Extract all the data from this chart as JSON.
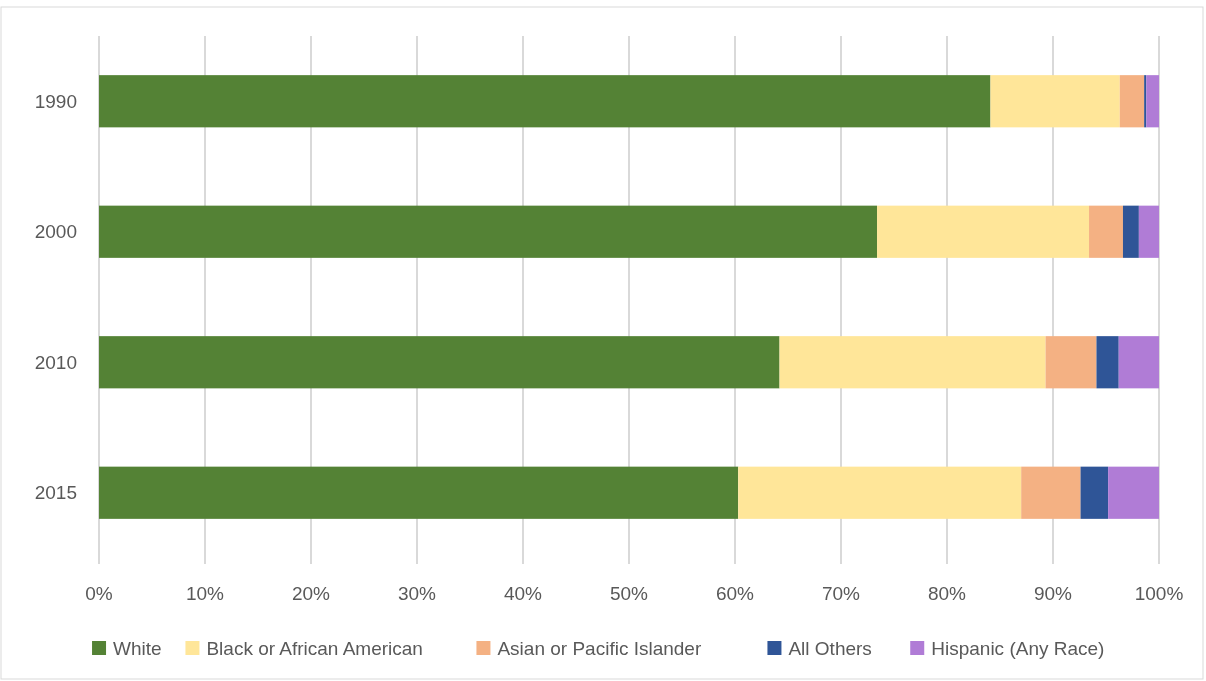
{
  "chart_data": {
    "type": "bar",
    "orientation": "horizontal",
    "stacked": true,
    "categories": [
      "1990",
      "2000",
      "2010",
      "2015"
    ],
    "series": [
      {
        "name": "White",
        "color": "#548235",
        "values": [
          84.1,
          73.4,
          64.2,
          60.3
        ]
      },
      {
        "name": "Black or African American",
        "color": "#ffe699",
        "values": [
          12.2,
          20.0,
          25.1,
          26.7
        ]
      },
      {
        "name": "Asian or Pacific Islander",
        "color": "#f4b183",
        "values": [
          2.3,
          3.2,
          4.8,
          5.6
        ]
      },
      {
        "name": "All Others",
        "color": "#2f5597",
        "values": [
          0.2,
          1.5,
          2.1,
          2.6
        ]
      },
      {
        "name": "Hispanic (Any Race)",
        "color": "#b07cd6",
        "values": [
          1.2,
          1.9,
          3.8,
          4.8
        ]
      }
    ],
    "xlim": [
      0,
      100
    ],
    "xticks": [
      {
        "value": 0,
        "label": "0%"
      },
      {
        "value": 10,
        "label": "10%"
      },
      {
        "value": 20,
        "label": "20%"
      },
      {
        "value": 30,
        "label": "30%"
      },
      {
        "value": 40,
        "label": "40%"
      },
      {
        "value": 50,
        "label": "50%"
      },
      {
        "value": 60,
        "label": "60%"
      },
      {
        "value": 70,
        "label": "70%"
      },
      {
        "value": 80,
        "label": "80%"
      },
      {
        "value": 90,
        "label": "90%"
      },
      {
        "value": 100,
        "label": "100%"
      }
    ],
    "grid": "x",
    "legend": "bottom"
  }
}
